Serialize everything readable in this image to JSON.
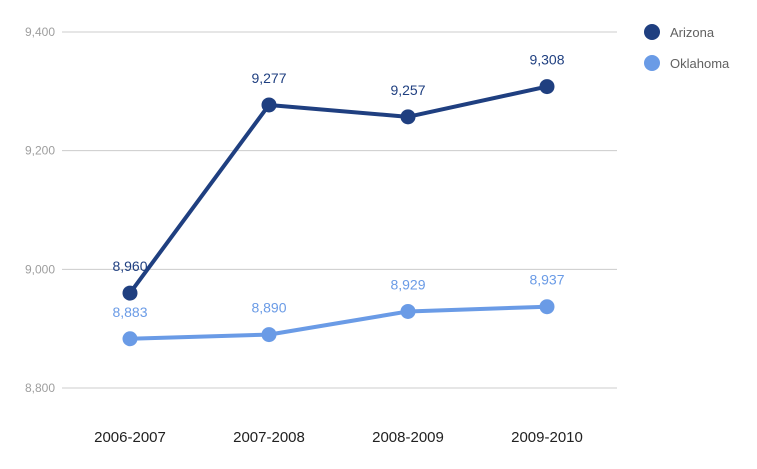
{
  "chart_data": {
    "type": "line",
    "categories": [
      "2006-2007",
      "2007-2008",
      "2008-2009",
      "2009-2010"
    ],
    "series": [
      {
        "name": "Arizona",
        "values": [
          8960,
          9277,
          9257,
          9308
        ],
        "labels": [
          "8,960",
          "9,277",
          "9,257",
          "9,308"
        ],
        "color": "#1f3f80"
      },
      {
        "name": "Oklahoma",
        "values": [
          8883,
          8890,
          8929,
          8937
        ],
        "labels": [
          "8,883",
          "8,890",
          "8,929",
          "8,937"
        ],
        "color": "#6a9be6"
      }
    ],
    "yticks": [
      8800,
      9000,
      9200,
      9400
    ],
    "ytick_labels": [
      "8,800",
      "9,000",
      "9,200",
      "9,400"
    ],
    "ylim": [
      8800,
      9400
    ],
    "grid": true,
    "legend_position": "top-right"
  }
}
